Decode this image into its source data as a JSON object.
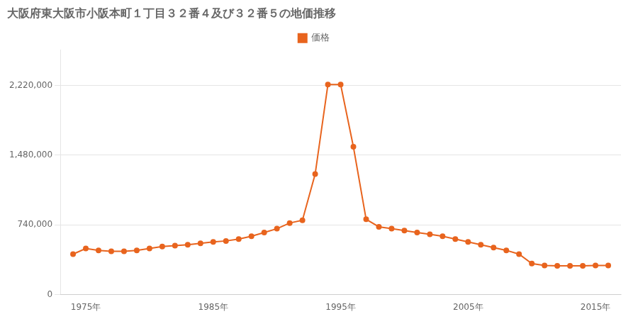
{
  "chart_data": {
    "type": "line",
    "title": "大阪府東大阪市小阪本町１丁目３２番４及び３２番５の地価推移",
    "x": [
      1974,
      1975,
      1976,
      1977,
      1978,
      1979,
      1980,
      1981,
      1982,
      1983,
      1984,
      1985,
      1986,
      1987,
      1988,
      1989,
      1990,
      1991,
      1992,
      1993,
      1994,
      1995,
      1996,
      1997,
      1998,
      1999,
      2000,
      2001,
      2002,
      2003,
      2004,
      2005,
      2006,
      2007,
      2008,
      2009,
      2010,
      2011,
      2012,
      2013,
      2014,
      2015,
      2016
    ],
    "series": [
      {
        "name": "価格",
        "color": "#e8641e",
        "marker": "circle",
        "line_style": "solid",
        "values": [
          430000,
          490000,
          470000,
          460000,
          460000,
          470000,
          490000,
          510000,
          520000,
          530000,
          545000,
          560000,
          570000,
          590000,
          620000,
          660000,
          700000,
          760000,
          790000,
          1280000,
          2230000,
          2230000,
          1570000,
          800000,
          720000,
          700000,
          680000,
          660000,
          640000,
          620000,
          590000,
          560000,
          530000,
          500000,
          470000,
          430000,
          330000,
          310000,
          305000,
          305000,
          305000,
          310000,
          310000
        ]
      }
    ],
    "xlim": [
      1973,
      2017
    ],
    "xticks": [
      {
        "value": 1975,
        "label": "1975年"
      },
      {
        "value": 1985,
        "label": "1985年"
      },
      {
        "value": 1995,
        "label": "1995年"
      },
      {
        "value": 2005,
        "label": "2005年"
      },
      {
        "value": 2015,
        "label": "2015年"
      }
    ],
    "ylim": [
      0,
      2600000
    ],
    "yticks": [
      0,
      {
        "value": 740000,
        "label": "740,000"
      },
      {
        "value": 1480000,
        "label": "1,480,000"
      },
      {
        "value": 2220000,
        "label": "2,220,000"
      }
    ],
    "grid": "y",
    "legend": "top"
  }
}
